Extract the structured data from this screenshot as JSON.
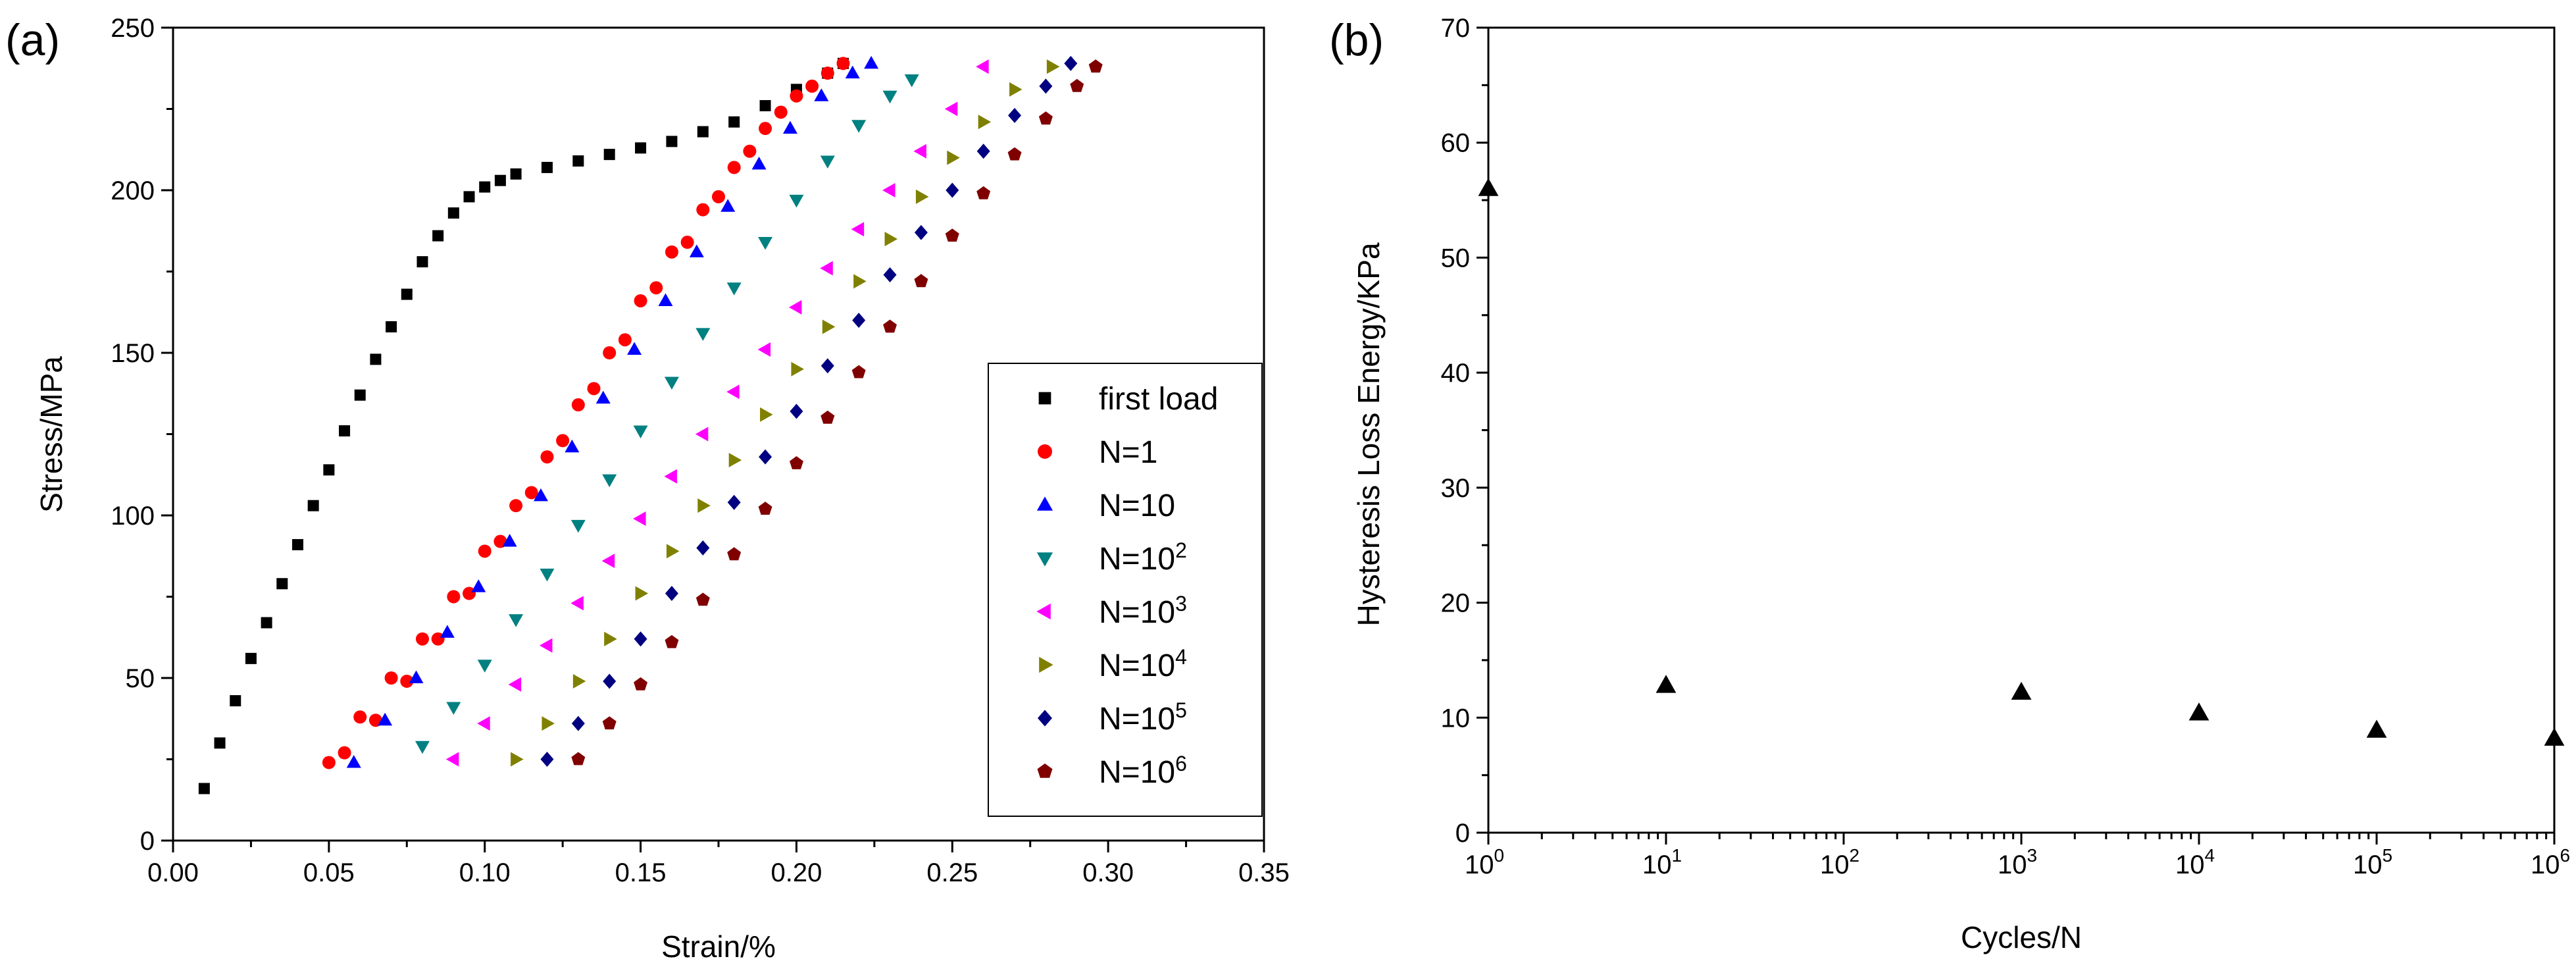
{
  "chart_data": [
    {
      "type": "scatter",
      "panel_label": "(a)",
      "xlabel": "Strain/%",
      "ylabel": "Stress/MPa",
      "xlim": [
        0,
        0.35
      ],
      "ylim": [
        0,
        250
      ],
      "xticks": [
        "0.00",
        "0.05",
        "0.10",
        "0.15",
        "0.20",
        "0.25",
        "0.30",
        "0.35"
      ],
      "yticks": [
        "0",
        "50",
        "100",
        "150",
        "200",
        "250"
      ],
      "legend_position": "lower-right",
      "series": [
        {
          "name": "first load",
          "marker": "square",
          "color": "#000000",
          "points": [
            [
              0.01,
              16
            ],
            [
              0.015,
              30
            ],
            [
              0.02,
              43
            ],
            [
              0.025,
              56
            ],
            [
              0.03,
              67
            ],
            [
              0.035,
              79
            ],
            [
              0.04,
              91
            ],
            [
              0.045,
              103
            ],
            [
              0.05,
              114
            ],
            [
              0.055,
              126
            ],
            [
              0.06,
              137
            ],
            [
              0.065,
              148
            ],
            [
              0.07,
              158
            ],
            [
              0.075,
              168
            ],
            [
              0.08,
              178
            ],
            [
              0.085,
              186
            ],
            [
              0.09,
              193
            ],
            [
              0.095,
              198
            ],
            [
              0.1,
              201
            ],
            [
              0.105,
              203
            ],
            [
              0.11,
              205
            ],
            [
              0.12,
              207
            ],
            [
              0.13,
              209
            ],
            [
              0.14,
              211
            ],
            [
              0.15,
              213
            ],
            [
              0.16,
              215
            ],
            [
              0.17,
              218
            ],
            [
              0.18,
              221
            ],
            [
              0.19,
              226
            ],
            [
              0.2,
              231
            ],
            [
              0.21,
              236
            ],
            [
              0.215,
              239
            ]
          ]
        },
        {
          "name": "N=1",
          "marker": "circle",
          "color": "#ff0000",
          "points": [
            [
              0.05,
              24
            ],
            [
              0.06,
              38
            ],
            [
              0.07,
              50
            ],
            [
              0.08,
              62
            ],
            [
              0.09,
              75
            ],
            [
              0.1,
              89
            ],
            [
              0.11,
              103
            ],
            [
              0.12,
              118
            ],
            [
              0.13,
              134
            ],
            [
              0.14,
              150
            ],
            [
              0.15,
              166
            ],
            [
              0.16,
              181
            ],
            [
              0.17,
              194
            ],
            [
              0.18,
              207
            ],
            [
              0.19,
              219
            ],
            [
              0.2,
              229
            ],
            [
              0.21,
              236
            ],
            [
              0.215,
              239
            ],
            [
              0.205,
              232
            ],
            [
              0.195,
              224
            ],
            [
              0.185,
              212
            ],
            [
              0.175,
              198
            ],
            [
              0.165,
              184
            ],
            [
              0.155,
              170
            ],
            [
              0.145,
              154
            ],
            [
              0.135,
              139
            ],
            [
              0.125,
              123
            ],
            [
              0.115,
              107
            ],
            [
              0.105,
              92
            ],
            [
              0.095,
              76
            ],
            [
              0.085,
              62
            ],
            [
              0.075,
              49
            ],
            [
              0.065,
              37
            ],
            [
              0.055,
              27
            ]
          ]
        },
        {
          "name": "N=10",
          "marker": "triangle-up",
          "color": "#0000ff",
          "points": [
            [
              0.058,
              24
            ],
            [
              0.068,
              37
            ],
            [
              0.078,
              50
            ],
            [
              0.088,
              64
            ],
            [
              0.098,
              78
            ],
            [
              0.108,
              92
            ],
            [
              0.118,
              106
            ],
            [
              0.128,
              121
            ],
            [
              0.138,
              136
            ],
            [
              0.148,
              151
            ],
            [
              0.158,
              166
            ],
            [
              0.168,
              181
            ],
            [
              0.178,
              195
            ],
            [
              0.188,
              208
            ],
            [
              0.198,
              219
            ],
            [
              0.208,
              229
            ],
            [
              0.218,
              236
            ],
            [
              0.224,
              239
            ]
          ]
        },
        {
          "name": "N=10^2",
          "marker": "triangle-down",
          "color": "#008080",
          "points": [
            [
              0.08,
              29
            ],
            [
              0.09,
              41
            ],
            [
              0.1,
              54
            ],
            [
              0.11,
              68
            ],
            [
              0.12,
              82
            ],
            [
              0.13,
              97
            ],
            [
              0.14,
              111
            ],
            [
              0.15,
              126
            ],
            [
              0.16,
              141
            ],
            [
              0.17,
              156
            ],
            [
              0.18,
              170
            ],
            [
              0.19,
              184
            ],
            [
              0.2,
              197
            ],
            [
              0.21,
              209
            ],
            [
              0.22,
              220
            ],
            [
              0.23,
              229
            ],
            [
              0.237,
              234
            ]
          ]
        },
        {
          "name": "N=10^3",
          "marker": "triangle-left",
          "color": "#ff00ff",
          "points": [
            [
              0.09,
              25
            ],
            [
              0.1,
              36
            ],
            [
              0.11,
              48
            ],
            [
              0.12,
              60
            ],
            [
              0.13,
              73
            ],
            [
              0.14,
              86
            ],
            [
              0.15,
              99
            ],
            [
              0.16,
              112
            ],
            [
              0.17,
              125
            ],
            [
              0.18,
              138
            ],
            [
              0.19,
              151
            ],
            [
              0.2,
              164
            ],
            [
              0.21,
              176
            ],
            [
              0.22,
              188
            ],
            [
              0.23,
              200
            ],
            [
              0.24,
              212
            ],
            [
              0.25,
              225
            ],
            [
              0.26,
              238
            ]
          ]
        },
        {
          "name": "N=10^4",
          "marker": "triangle-right",
          "color": "#808000",
          "points": [
            [
              0.11,
              25
            ],
            [
              0.12,
              36
            ],
            [
              0.13,
              49
            ],
            [
              0.14,
              62
            ],
            [
              0.15,
              76
            ],
            [
              0.16,
              89
            ],
            [
              0.17,
              103
            ],
            [
              0.18,
              117
            ],
            [
              0.19,
              131
            ],
            [
              0.2,
              145
            ],
            [
              0.21,
              158
            ],
            [
              0.22,
              172
            ],
            [
              0.23,
              185
            ],
            [
              0.24,
              198
            ],
            [
              0.25,
              210
            ],
            [
              0.26,
              221
            ],
            [
              0.27,
              231
            ],
            [
              0.282,
              238
            ]
          ]
        },
        {
          "name": "N=10^5",
          "marker": "diamond",
          "color": "#000080",
          "points": [
            [
              0.12,
              25
            ],
            [
              0.13,
              36
            ],
            [
              0.14,
              49
            ],
            [
              0.15,
              62
            ],
            [
              0.16,
              76
            ],
            [
              0.17,
              90
            ],
            [
              0.18,
              104
            ],
            [
              0.19,
              118
            ],
            [
              0.2,
              132
            ],
            [
              0.21,
              146
            ],
            [
              0.22,
              160
            ],
            [
              0.23,
              174
            ],
            [
              0.24,
              187
            ],
            [
              0.25,
              200
            ],
            [
              0.26,
              212
            ],
            [
              0.27,
              223
            ],
            [
              0.28,
              232
            ],
            [
              0.288,
              239
            ]
          ]
        },
        {
          "name": "N=10^6",
          "marker": "pentagon",
          "color": "#800000",
          "points": [
            [
              0.13,
              25
            ],
            [
              0.14,
              36
            ],
            [
              0.15,
              48
            ],
            [
              0.16,
              61
            ],
            [
              0.17,
              74
            ],
            [
              0.18,
              88
            ],
            [
              0.19,
              102
            ],
            [
              0.2,
              116
            ],
            [
              0.21,
              130
            ],
            [
              0.22,
              144
            ],
            [
              0.23,
              158
            ],
            [
              0.24,
              172
            ],
            [
              0.25,
              186
            ],
            [
              0.26,
              199
            ],
            [
              0.27,
              211
            ],
            [
              0.28,
              222
            ],
            [
              0.29,
              232
            ],
            [
              0.296,
              238
            ]
          ]
        }
      ]
    },
    {
      "type": "scatter",
      "panel_label": "(b)",
      "xlabel": "Cycles/N",
      "ylabel": "Hysteresis Loss Energy/KPa",
      "xscale": "log",
      "xlim": [
        1,
        1000000
      ],
      "ylim": [
        0,
        70
      ],
      "xtick_exponents": [
        "0",
        "1",
        "2",
        "3",
        "4",
        "5",
        "6"
      ],
      "xtick_base": "10",
      "yticks": [
        "0",
        "10",
        "20",
        "30",
        "40",
        "50",
        "60",
        "70"
      ],
      "series": [
        {
          "marker": "triangle-up",
          "color": "#000000",
          "points": [
            [
              1,
              56
            ],
            [
              10,
              12.8
            ],
            [
              1000,
              12.2
            ],
            [
              10000,
              10.4
            ],
            [
              100000,
              8.9
            ],
            [
              1000000,
              8.2
            ]
          ]
        }
      ]
    }
  ]
}
